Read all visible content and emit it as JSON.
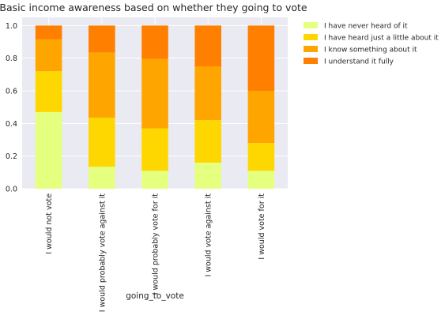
{
  "chart_data": {
    "type": "bar",
    "stacked": true,
    "title": "Basic income awareness based on whether they going to vote",
    "xlabel": "going_to_vote",
    "ylabel": "",
    "ylim": [
      0,
      1.05
    ],
    "yticks": [
      "0.0",
      "0.2",
      "0.4",
      "0.6",
      "0.8",
      "1.0"
    ],
    "grid": true,
    "legend_position": "outside-top-right",
    "categories": [
      "I would not vote",
      "I would probably vote against it",
      "I would probably vote for it",
      "I would vote against it",
      "I would vote for it"
    ],
    "series": [
      {
        "name": "I have never heard of it",
        "color": "#e5ff7f",
        "values": [
          0.47,
          0.135,
          0.11,
          0.16,
          0.11
        ]
      },
      {
        "name": "I have heard just a little about it",
        "color": "#ffd700",
        "values": [
          0.25,
          0.3,
          0.26,
          0.26,
          0.17
        ]
      },
      {
        "name": "I know something about it",
        "color": "#ffa500",
        "values": [
          0.195,
          0.4,
          0.425,
          0.33,
          0.32
        ]
      },
      {
        "name": "I understand it fully",
        "color": "#ff7f00",
        "values": [
          0.085,
          0.165,
          0.205,
          0.25,
          0.4
        ]
      }
    ]
  }
}
